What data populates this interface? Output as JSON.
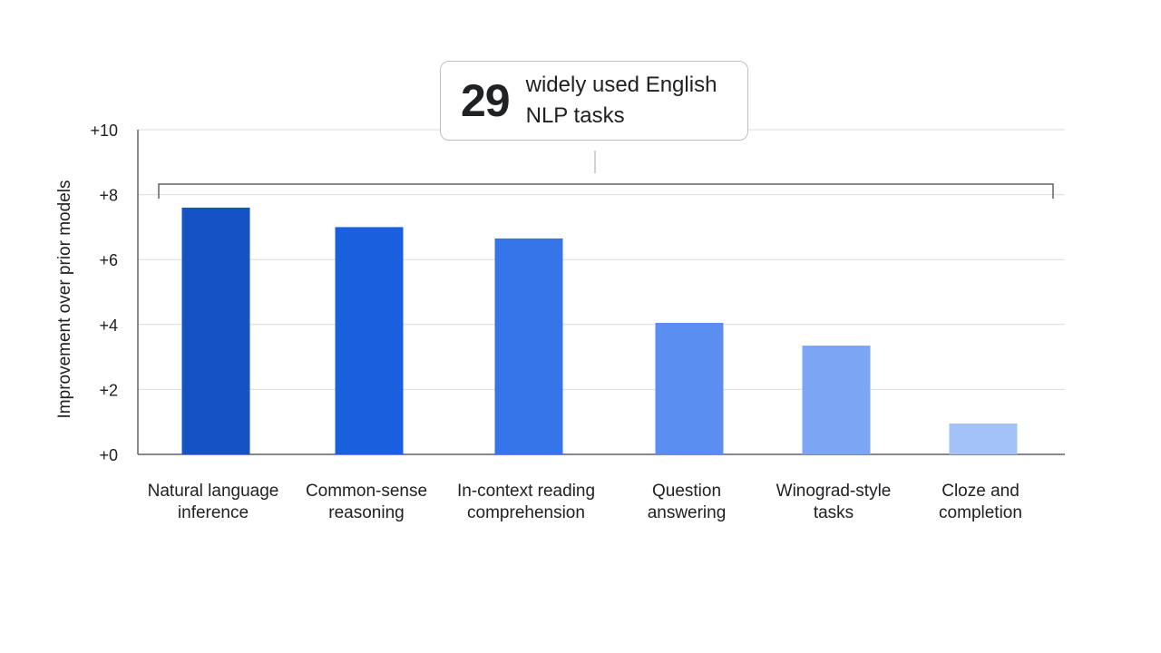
{
  "callout": {
    "number": "29",
    "text": "widely used English NLP tasks"
  },
  "chart_data": {
    "type": "bar",
    "ylabel": "Improvement over prior models",
    "ylim": [
      0,
      10
    ],
    "yticks": [
      "+0",
      "+2",
      "+4",
      "+6",
      "+8",
      "+10"
    ],
    "ytick_values": [
      0,
      2,
      4,
      6,
      8,
      10
    ],
    "grid": true,
    "categories": [
      [
        "Natural language",
        "inference"
      ],
      [
        "Common-sense",
        "reasoning"
      ],
      [
        "In-context reading",
        "comprehension"
      ],
      [
        "Question",
        "answering"
      ],
      [
        "Winograd-style",
        "tasks"
      ],
      [
        "Cloze and",
        "completion"
      ]
    ],
    "values": [
      7.6,
      7.0,
      6.65,
      4.05,
      3.35,
      0.95
    ],
    "colors": [
      "#1552c4",
      "#1a5fde",
      "#3674ea",
      "#5a8ef0",
      "#7ba6f4",
      "#a3c2f8"
    ]
  }
}
